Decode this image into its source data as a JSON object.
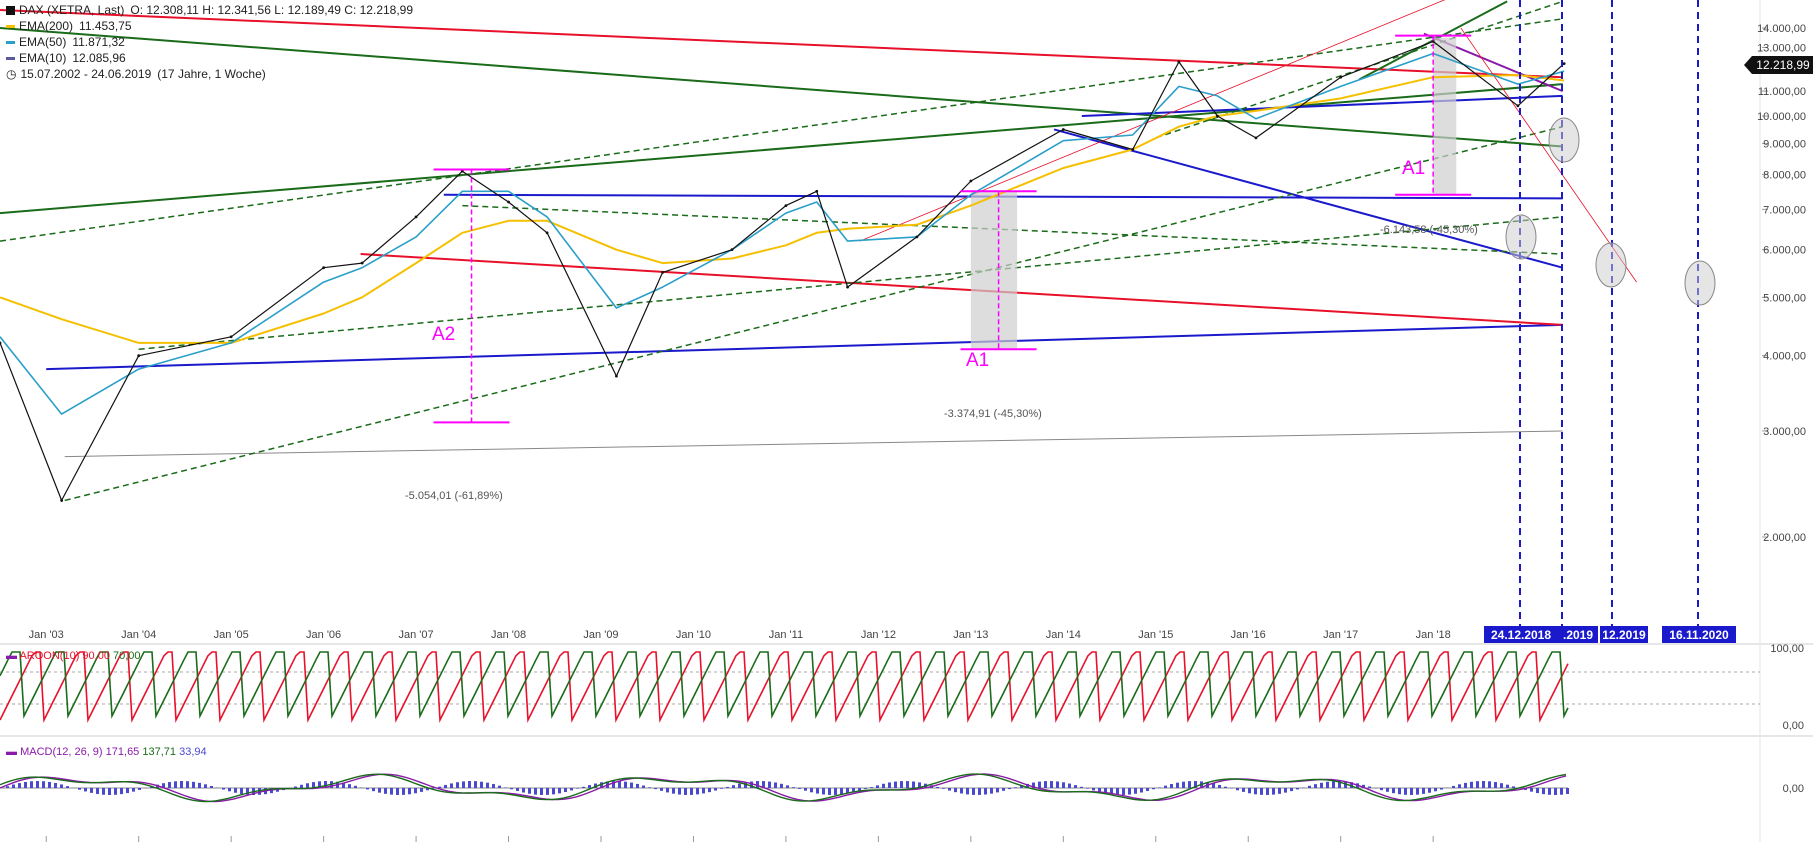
{
  "header": {
    "instrument": "DAX (XETRA, Last)",
    "ohlc": "O: 12.308,11  H: 12.341,56  L: 12.189,49  C: 12.218,99",
    "date_range": "15.07.2002 - 24.06.2019",
    "duration": "(17 Jahre, 1 Woche)"
  },
  "indicators": [
    {
      "name": "EMA(200)",
      "value": "11.453,75",
      "color": "#f5c000"
    },
    {
      "name": "EMA(50)",
      "value": "11.871,32",
      "color": "#2a9fc9"
    },
    {
      "name": "EMA(10)",
      "value": "12.085,96",
      "color": "#5a5aa0"
    }
  ],
  "last_price_label": "12.218,99",
  "aroon": {
    "label": "AROON(10)",
    "v1": "90,00",
    "v2": "70,00",
    "ticks": [
      "100,00",
      "0,00"
    ]
  },
  "macd": {
    "label": "MACD(12, 26, 9)",
    "v1": "171,65",
    "v2": "137,71",
    "v3": "33,94",
    "tick": "0,00"
  },
  "annotations": {
    "a2": "A2",
    "a1_left": "A1",
    "a1_right": "A1",
    "drop_2007": "-5.054,01 (-61,89%)",
    "drop_2011": "-3.374,91 (-45,30%)",
    "drop_2018": "-6.143,58 (-45,30%)"
  },
  "date_boxes": [
    "24.12.2018",
    ".2019",
    "12.2019",
    "16.11.2020"
  ],
  "colors": {
    "price": "#111111",
    "ema200": "#f5c000",
    "ema50": "#2a9fc9",
    "red": "#e8102a",
    "blue": "#1a1acc",
    "green": "#1a6b1a",
    "magenta": "#ff00ff",
    "purple": "#8a1aa8"
  },
  "chart_data": {
    "type": "line",
    "scale": "log",
    "x": [
      "2002-07",
      "2003-03",
      "2004-01",
      "2005-01",
      "2006-01",
      "2006-06",
      "2007-01",
      "2007-07",
      "2008-01",
      "2008-06",
      "2009-03",
      "2009-09",
      "2010-06",
      "2011-01",
      "2011-05",
      "2011-09",
      "2012-06",
      "2013-01",
      "2014-01",
      "2014-10",
      "2015-04",
      "2015-09",
      "2016-02",
      "2017-01",
      "2018-01",
      "2018-12",
      "2019-06"
    ],
    "series": [
      {
        "name": "DAX (XETRA, Last)",
        "values": [
          4200,
          2300,
          4000,
          4300,
          5600,
          5700,
          6800,
          8100,
          7200,
          6400,
          3700,
          5500,
          6000,
          7100,
          7500,
          5200,
          6300,
          7800,
          9500,
          8800,
          12300,
          10000,
          9200,
          11600,
          13300,
          10400,
          12219
        ]
      },
      {
        "name": "EMA(200)",
        "values": [
          5000,
          4600,
          4200,
          4200,
          4700,
          5000,
          5700,
          6400,
          6700,
          6700,
          6000,
          5700,
          5800,
          6100,
          6400,
          6500,
          6600,
          7100,
          8200,
          8800,
          9600,
          10000,
          10200,
          10700,
          11600,
          11700,
          11454
        ]
      },
      {
        "name": "EMA(50)",
        "values": [
          4300,
          3200,
          3800,
          4200,
          5300,
          5600,
          6300,
          7500,
          7500,
          6800,
          4800,
          5200,
          6000,
          6900,
          7200,
          6200,
          6300,
          7400,
          9100,
          9300,
          11200,
          10800,
          9900,
          11200,
          12700,
          11300,
          11871
        ]
      }
    ],
    "y_ticks": [
      "2.000,00",
      "3.000,00",
      "4.000,00",
      "5.000,00",
      "6.000,00",
      "7.000,00",
      "8.000,00",
      "9.000,00",
      "10.000,00",
      "11.000,00",
      "13.000,00",
      "14.000,00"
    ],
    "x_ticks": [
      "Jan '03",
      "Jan '04",
      "Jan '05",
      "Jan '06",
      "Jan '07",
      "Jan '08",
      "Jan '09",
      "Jan '10",
      "Jan '11",
      "Jan '12",
      "Jan '13",
      "Jan '14",
      "Jan '15",
      "Jan '16",
      "Jan '17",
      "Jan '18"
    ],
    "ylim": [
      2000,
      15000
    ],
    "grid": false
  }
}
